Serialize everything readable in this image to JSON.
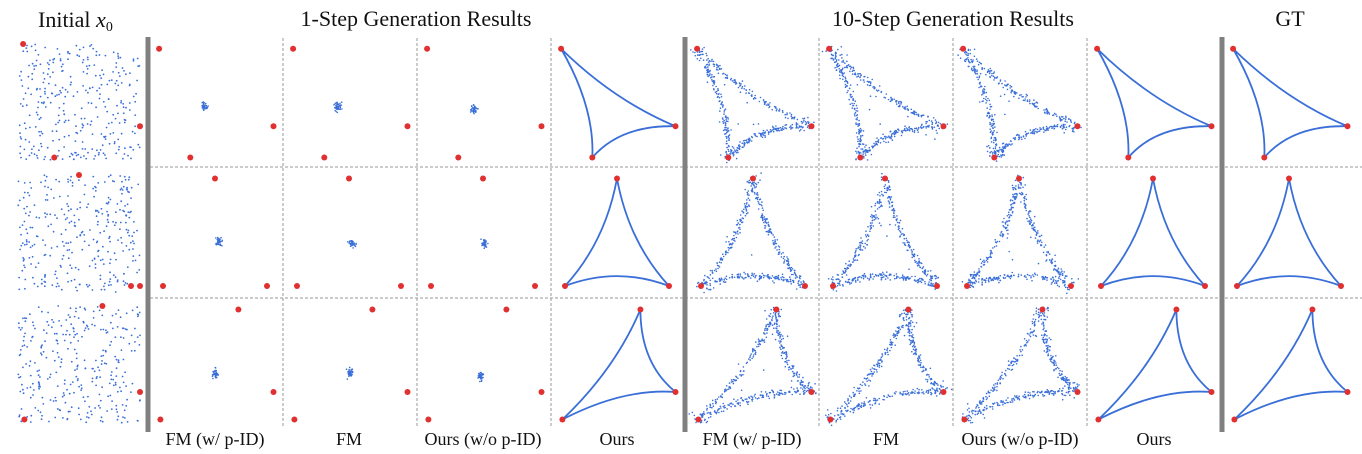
{
  "headers": {
    "initial_prefix": "Initial ",
    "initial_var": "x",
    "initial_sub": "0",
    "one_step": "1-Step Generation Results",
    "ten_step": "10-Step Generation Results",
    "gt": "GT"
  },
  "column_labels": {
    "one_step": [
      "FM (w/ p-ID)",
      "FM",
      "Ours (w/o p-ID)",
      "Ours"
    ],
    "ten_step": [
      "FM (w/ p-ID)",
      "FM",
      "Ours (w/o p-ID)",
      "Ours"
    ]
  },
  "colors": {
    "points": "#3a6fd8",
    "vertices": "#e03030",
    "thick_divider": "#808080",
    "thin_divider": "#999999"
  },
  "chart_data": {
    "type": "scatter",
    "rows": 3,
    "columns": [
      "Initial x0",
      "1-Step FM (w/ p-ID)",
      "1-Step FM",
      "1-Step Ours (w/o p-ID)",
      "1-Step Ours",
      "10-Step FM (w/ p-ID)",
      "10-Step FM",
      "10-Step Ours (w/o p-ID)",
      "10-Step Ours",
      "GT"
    ],
    "triangle_vertices": [
      [
        [
          0.07,
          0.07
        ],
        [
          0.95,
          0.69
        ],
        [
          0.31,
          0.94
        ]
      ],
      [
        [
          0.5,
          0.06
        ],
        [
          0.1,
          0.92
        ],
        [
          0.9,
          0.92
        ]
      ],
      [
        [
          0.68,
          0.06
        ],
        [
          0.95,
          0.72
        ],
        [
          0.08,
          0.94
        ]
      ]
    ],
    "one_step_cluster_centers": [
      [
        [
          0.42,
          0.53
        ],
        [
          0.41,
          0.53
        ],
        [
          0.43,
          0.55
        ]
      ],
      [
        [
          0.53,
          0.57
        ],
        [
          0.52,
          0.58
        ],
        [
          0.51,
          0.58
        ]
      ],
      [
        [
          0.5,
          0.57
        ],
        [
          0.51,
          0.57
        ],
        [
          0.48,
          0.59
        ]
      ]
    ]
  }
}
